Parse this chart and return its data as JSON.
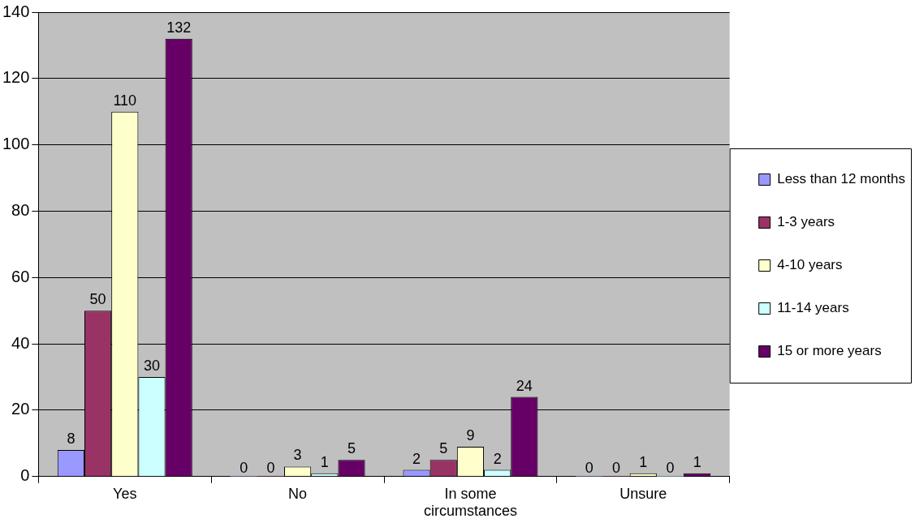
{
  "chart_data": {
    "type": "bar",
    "categories": [
      "Yes",
      "No",
      "In some circumstances",
      "Unsure"
    ],
    "series": [
      {
        "name": "Less than 12 months",
        "color": "#9999ff",
        "values": [
          8,
          0,
          2,
          0
        ]
      },
      {
        "name": "1-3 years",
        "color": "#993366",
        "values": [
          50,
          0,
          5,
          0
        ]
      },
      {
        "name": "4-10 years",
        "color": "#ffffcc",
        "values": [
          110,
          3,
          9,
          1
        ]
      },
      {
        "name": "11-14 years",
        "color": "#ccffff",
        "values": [
          30,
          1,
          2,
          0
        ]
      },
      {
        "name": "15 or more years",
        "color": "#660066",
        "values": [
          132,
          5,
          24,
          1
        ]
      }
    ],
    "ylim": [
      0,
      140
    ],
    "yticks": [
      0,
      20,
      40,
      60,
      80,
      100,
      120,
      140
    ],
    "grid": "y",
    "legend": "right",
    "data_labels": true
  }
}
